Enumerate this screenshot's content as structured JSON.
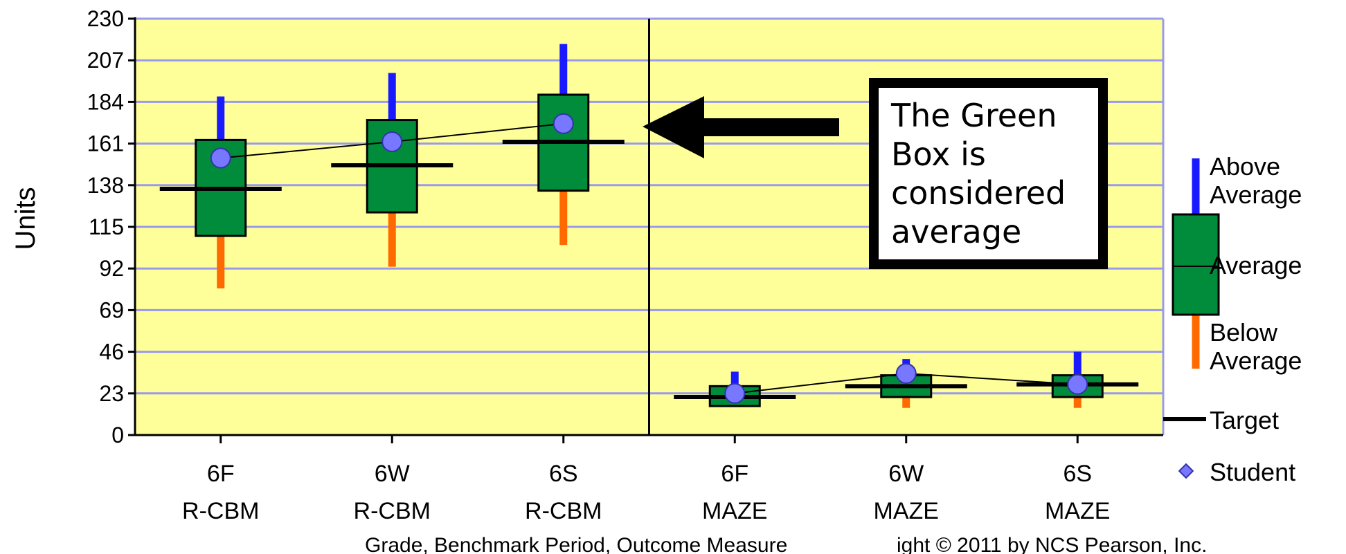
{
  "chart_data": {
    "type": "box",
    "ylabel": "Units",
    "xlabel": "Grade, Benchmark Period, Outcome Measure",
    "footer_overlap": "ight © 2011 by NCS Pearson, Inc.",
    "ylim": [
      0,
      230
    ],
    "yticks": [
      0,
      23,
      46,
      69,
      92,
      115,
      138,
      161,
      184,
      207,
      230
    ],
    "grid": true,
    "categories": [
      {
        "line1": "6F",
        "line2": "R-CBM",
        "whisker_low": 81,
        "box_low": 110,
        "box_high": 163,
        "whisker_high": 187,
        "target": 136,
        "student": 153
      },
      {
        "line1": "6W",
        "line2": "R-CBM",
        "whisker_low": 93,
        "box_low": 123,
        "box_high": 174,
        "whisker_high": 200,
        "target": 149,
        "student": 162
      },
      {
        "line1": "6S",
        "line2": "R-CBM",
        "whisker_low": 105,
        "box_low": 135,
        "box_high": 188,
        "whisker_high": 216,
        "target": 162,
        "student": 172
      },
      {
        "line1": "6F",
        "line2": "MAZE",
        "whisker_low": 16,
        "box_low": 16,
        "box_high": 27,
        "whisker_high": 35,
        "target": 21,
        "student": 23
      },
      {
        "line1": "6W",
        "line2": "MAZE",
        "whisker_low": 15,
        "box_low": 21,
        "box_high": 33,
        "whisker_high": 42,
        "target": 27,
        "student": 34
      },
      {
        "line1": "6S",
        "line2": "MAZE",
        "whisker_low": 15,
        "box_low": 21,
        "box_high": 33,
        "whisker_high": 46,
        "target": 28,
        "student": 28
      }
    ],
    "divider_after_index": 2,
    "callout": [
      "The Green",
      "Box is",
      "considered",
      "average"
    ],
    "legend": {
      "above": [
        "Above",
        "Average"
      ],
      "average": "Average",
      "below": [
        "Below",
        "Average"
      ],
      "target": "Target",
      "student": "Student"
    },
    "colors": {
      "plot_bg": "#ffff99",
      "grid": "#9999ee",
      "box": "#008c3a",
      "above": "#1a1aff",
      "below": "#ff6a00",
      "student": "#7777ff",
      "target": "#000000"
    }
  }
}
